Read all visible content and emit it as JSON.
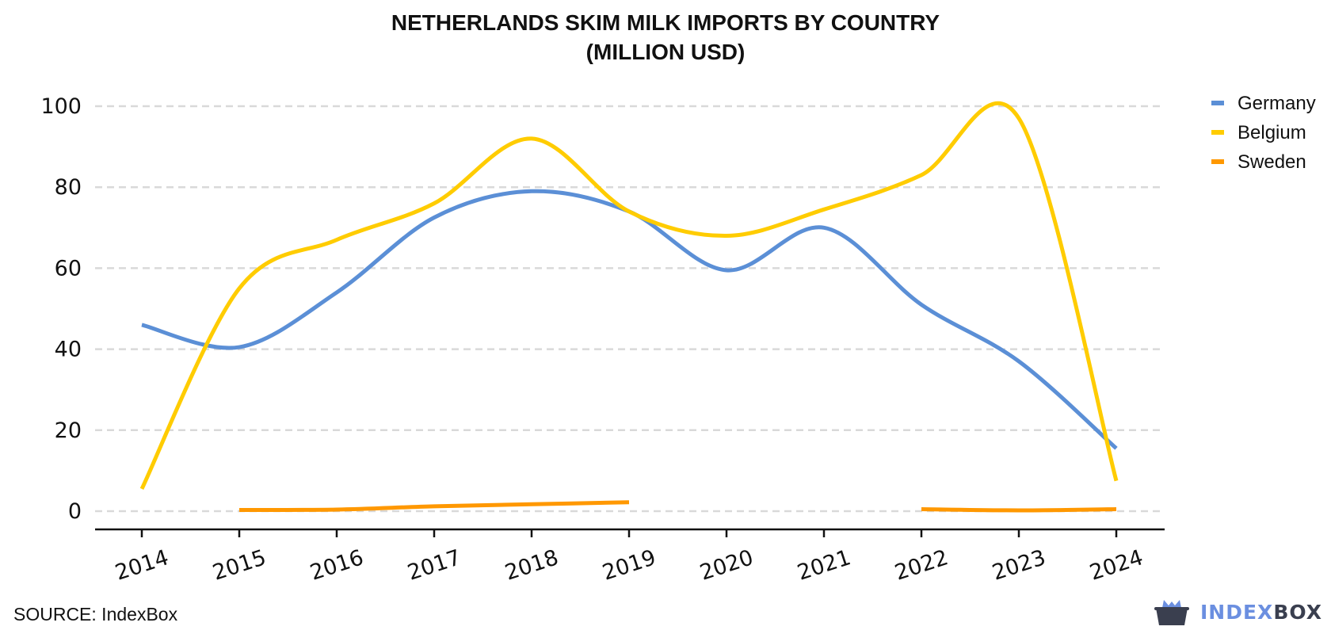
{
  "chart_data": {
    "type": "line",
    "title_line1": "NETHERLANDS SKIM MILK IMPORTS BY COUNTRY",
    "title_line2": "(MILLION USD)",
    "xlabel": "",
    "ylabel": "",
    "x": [
      "2014",
      "2015",
      "2016",
      "2017",
      "2018",
      "2019",
      "2020",
      "2021",
      "2022",
      "2023",
      "2024"
    ],
    "yticks": [
      "0",
      "20",
      "40",
      "60",
      "80",
      "100"
    ],
    "ylim": [
      0,
      100
    ],
    "grid": "horizontal dashed",
    "legend_position": "top-right",
    "series": [
      {
        "name": "Germany",
        "color": "#5b8fd6",
        "values": [
          46,
          40.5,
          54,
          72.5,
          79,
          74,
          59.5,
          70,
          51,
          37,
          15.5
        ]
      },
      {
        "name": "Belgium",
        "color": "#ffcc00",
        "values": [
          5.5,
          55,
          67,
          76,
          92,
          74,
          68,
          74.5,
          83,
          97,
          7.5
        ]
      },
      {
        "name": "Sweden",
        "color": "#ff9800",
        "values": [
          null,
          0.3,
          0.4,
          1.2,
          1.7,
          2.2,
          null,
          null,
          0.5,
          0.2,
          0.5
        ]
      }
    ]
  },
  "footer": {
    "source": "SOURCE: IndexBox",
    "brand_part1": "INDEX",
    "brand_part2": "BOX",
    "brand_logo": "indexbox-cat-logo-icon"
  }
}
